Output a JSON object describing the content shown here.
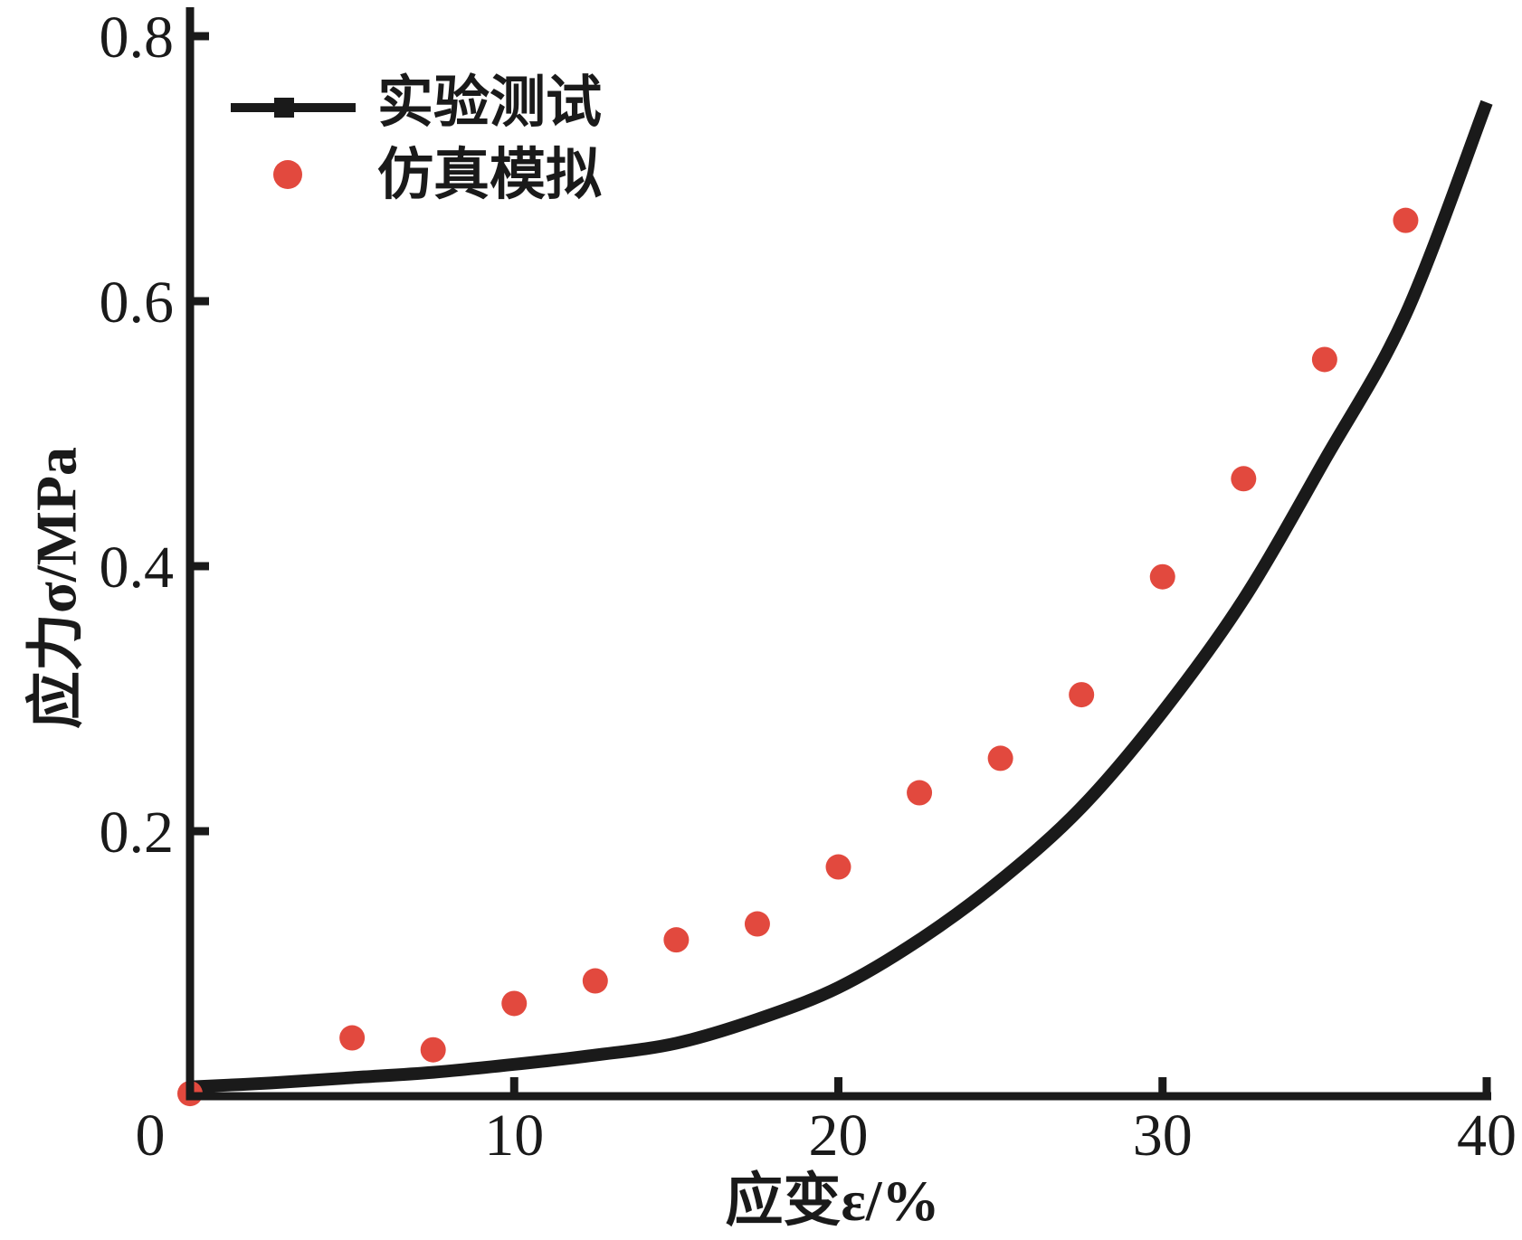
{
  "figure": {
    "background": "#ffffff",
    "line_color": "#1a1a1a",
    "scatter_color": "#e2493e"
  },
  "legend": {
    "items": [
      {
        "label": "实验测试",
        "marker": "line-with-square",
        "color": "#1a1a1a"
      },
      {
        "label": "仿真模拟",
        "marker": "filled-circle",
        "color": "#e2493e"
      }
    ]
  },
  "axes": {
    "x": {
      "title": "应变ε/%",
      "tick_values": [
        0,
        10,
        20,
        30,
        40
      ],
      "tick_labels": [
        "0",
        "10",
        "20",
        "30",
        "40"
      ]
    },
    "y": {
      "title": "应力σ/MPa",
      "tick_values": [
        0.2,
        0.4,
        0.6,
        0.8
      ],
      "tick_labels": [
        "0.2",
        "0.4",
        "0.6",
        "0.8"
      ]
    }
  },
  "chart_data": {
    "type": "mixed",
    "title": "",
    "xlabel": "应变ε/%",
    "ylabel": "应力σ/MPa",
    "xlim": [
      0,
      40
    ],
    "ylim": [
      0,
      0.8
    ],
    "grid": false,
    "legend_position": "upper-left-inside",
    "series": [
      {
        "name": "实验测试",
        "type": "line",
        "color": "#1a1a1a",
        "points": [
          [
            0,
            0.007
          ],
          [
            2.5,
            0.01
          ],
          [
            5,
            0.014
          ],
          [
            7.5,
            0.018
          ],
          [
            10,
            0.024
          ],
          [
            12.5,
            0.031
          ],
          [
            15,
            0.04
          ],
          [
            17.5,
            0.058
          ],
          [
            20,
            0.082
          ],
          [
            22.5,
            0.118
          ],
          [
            25,
            0.163
          ],
          [
            27.5,
            0.218
          ],
          [
            30,
            0.29
          ],
          [
            32.5,
            0.375
          ],
          [
            35,
            0.48
          ],
          [
            37.5,
            0.59
          ],
          [
            40,
            0.75
          ]
        ]
      },
      {
        "name": "仿真模拟",
        "type": "scatter",
        "color": "#e2493e",
        "points": [
          [
            0,
            0.002
          ],
          [
            5,
            0.044
          ],
          [
            7.5,
            0.035
          ],
          [
            10,
            0.07
          ],
          [
            12.5,
            0.087
          ],
          [
            15,
            0.118
          ],
          [
            17.5,
            0.13
          ],
          [
            20,
            0.173
          ],
          [
            22.5,
            0.229
          ],
          [
            25,
            0.255
          ],
          [
            27.5,
            0.303
          ],
          [
            30,
            0.392
          ],
          [
            32.5,
            0.466
          ],
          [
            35,
            0.556
          ],
          [
            37.5,
            0.661
          ]
        ]
      }
    ]
  }
}
